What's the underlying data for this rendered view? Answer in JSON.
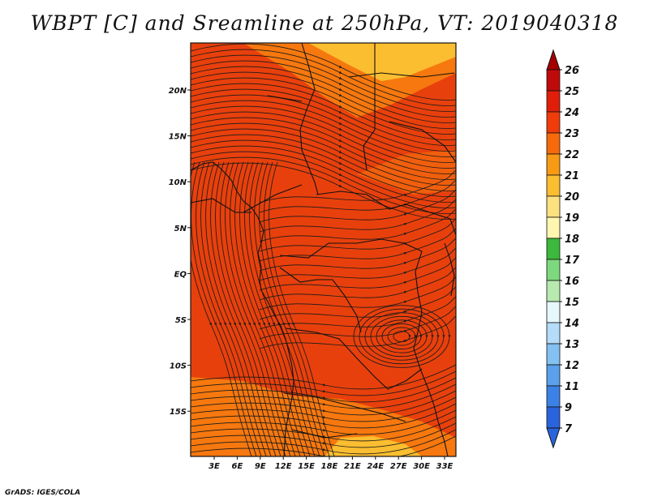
{
  "title": "WBPT [C] and Sreamline at 250hPa, VT: 2019040318",
  "credit": "GrADS: IGES/COLA",
  "map": {
    "lon_labels": [
      "3E",
      "6E",
      "9E",
      "12E",
      "15E",
      "18E",
      "21E",
      "24E",
      "27E",
      "30E",
      "33E"
    ],
    "lat_labels": [
      "20N",
      "15N",
      "10N",
      "5N",
      "EQ",
      "5S",
      "10S",
      "15S"
    ]
  },
  "colorbar": {
    "levels": [
      "26",
      "25",
      "24",
      "23",
      "22",
      "21",
      "20",
      "19",
      "18",
      "17",
      "16",
      "15",
      "14",
      "13",
      "12",
      "11",
      "9",
      "7"
    ],
    "colors": [
      "#a50000",
      "#c00a0a",
      "#e01e0a",
      "#f03c0a",
      "#f66a0c",
      "#f99a14",
      "#fbbe30",
      "#fde080",
      "#fff6b0",
      "#3cb83c",
      "#7ed87e",
      "#b8eab0",
      "#e6f8fa",
      "#b4dcf8",
      "#84c0f2",
      "#5aa0ea",
      "#3c82e6",
      "#2a64dc"
    ]
  },
  "field": {
    "background_color": "#e8400c",
    "warm_patch_color": "#f6780e",
    "hot_patch_color": "#fbbe30",
    "streamline_color": "#1a1a1a"
  }
}
